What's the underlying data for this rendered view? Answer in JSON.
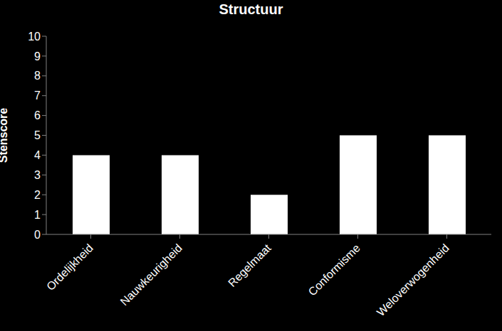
{
  "chart_data": {
    "type": "bar",
    "title": "Structuur",
    "y_label": "Stenscore",
    "categories": [
      "Ordelijkheid",
      "Nauwkeurigheid",
      "Regelmaat",
      "Conformisme",
      "Weloverwogenheid"
    ],
    "values": [
      4,
      4,
      2,
      5,
      5
    ],
    "color": "#ffffff",
    "ylim": [
      0,
      10
    ],
    "yticks": [
      0,
      1,
      2,
      3,
      4,
      5,
      6,
      7,
      8,
      9,
      10
    ],
    "grid": false
  }
}
